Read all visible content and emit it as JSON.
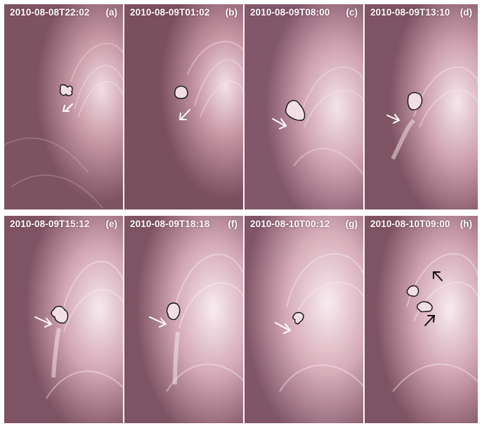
{
  "panels": [
    {
      "timestamp": "2010-08-08T22:02",
      "label": "(a)",
      "arrow_color": "#ffffff"
    },
    {
      "timestamp": "2010-08-09T01:02",
      "label": "(b)",
      "arrow_color": "#ffffff"
    },
    {
      "timestamp": "2010-08-09T08:00",
      "label": "(c)",
      "arrow_color": "#ffffff"
    },
    {
      "timestamp": "2010-08-09T13:10",
      "label": "(d)",
      "arrow_color": "#ffffff"
    },
    {
      "timestamp": "2010-08-09T15:12",
      "label": "(e)",
      "arrow_color": "#ffffff"
    },
    {
      "timestamp": "2010-08-09T18:18",
      "label": "(f)",
      "arrow_color": "#ffffff"
    },
    {
      "timestamp": "2010-08-10T00:12",
      "label": "(g)",
      "arrow_color": "#ffffff"
    },
    {
      "timestamp": "2010-08-10T09:00",
      "label": "(h)",
      "arrow_color": "#111111"
    }
  ],
  "colors": {
    "background_dark": "#7a4f5e",
    "background_mid": "#9a6c7c",
    "bright_loops": "#f4e6ea",
    "contour": "#111111",
    "text": "#ffffff"
  }
}
